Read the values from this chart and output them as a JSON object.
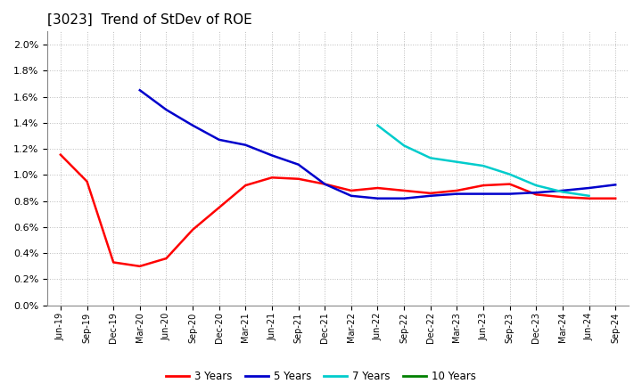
{
  "title": "[3023]  Trend of StDev of ROE",
  "title_fontsize": 11,
  "ylim": [
    0.0,
    0.021
  ],
  "yticks": [
    0.0,
    0.002,
    0.004,
    0.006,
    0.008,
    0.01,
    0.012,
    0.014,
    0.016,
    0.018,
    0.02
  ],
  "ytick_labels": [
    "0.0%",
    "0.2%",
    "0.4%",
    "0.6%",
    "0.8%",
    "1.0%",
    "1.2%",
    "1.4%",
    "1.6%",
    "1.8%",
    "2.0%"
  ],
  "x_labels": [
    "Jun-19",
    "Sep-19",
    "Dec-19",
    "Mar-20",
    "Jun-20",
    "Sep-20",
    "Dec-20",
    "Mar-21",
    "Jun-21",
    "Sep-21",
    "Dec-21",
    "Mar-22",
    "Jun-22",
    "Sep-22",
    "Dec-22",
    "Mar-23",
    "Jun-23",
    "Sep-23",
    "Dec-23",
    "Mar-24",
    "Jun-24",
    "Sep-24"
  ],
  "series": {
    "3 Years": {
      "color": "#FF0000",
      "data_y": [
        0.01155,
        0.0095,
        0.0033,
        0.003,
        0.0036,
        0.0058,
        0.0075,
        0.0092,
        0.0098,
        0.0097,
        0.0093,
        0.0088,
        0.009,
        0.0088,
        0.0086,
        0.0088,
        0.0092,
        0.0093,
        0.0085,
        0.0083,
        0.0082,
        0.0082
      ]
    },
    "5 Years": {
      "color": "#0000CC",
      "data_y": [
        null,
        null,
        null,
        0.0165,
        0.015,
        0.0138,
        0.0127,
        0.0123,
        0.0115,
        0.0108,
        0.0093,
        0.0084,
        0.0082,
        0.0082,
        0.0084,
        0.00855,
        0.00855,
        0.00855,
        0.00865,
        0.0088,
        0.009,
        0.00925
      ]
    },
    "7 Years": {
      "color": "#00CCCC",
      "data_y": [
        null,
        null,
        null,
        null,
        null,
        null,
        null,
        null,
        null,
        null,
        null,
        null,
        0.0138,
        0.01225,
        0.0113,
        0.011,
        0.0107,
        0.01005,
        0.0092,
        0.0087,
        0.0084,
        null
      ]
    },
    "10 Years": {
      "color": "#008000",
      "data_y": [
        null,
        null,
        null,
        null,
        null,
        null,
        null,
        null,
        null,
        null,
        null,
        null,
        null,
        null,
        null,
        null,
        null,
        null,
        null,
        null,
        null,
        null
      ]
    }
  },
  "legend_order": [
    "3 Years",
    "5 Years",
    "7 Years",
    "10 Years"
  ],
  "background_color": "#ffffff",
  "plot_bg_color": "#ffffff",
  "grid_color": "#bbbbbb",
  "line_width": 1.8
}
